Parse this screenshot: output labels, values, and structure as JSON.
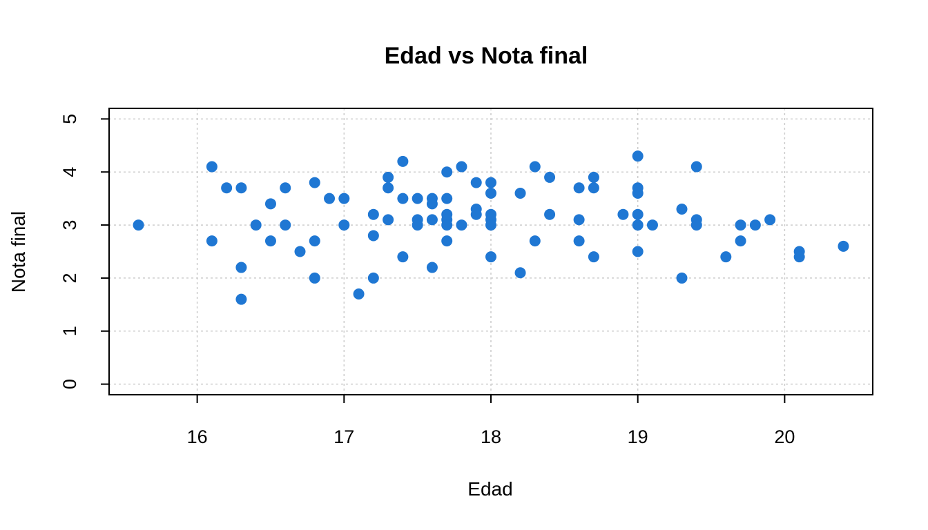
{
  "chart_data": {
    "type": "scatter",
    "title": "Edad vs Nota final",
    "xlabel": "Edad",
    "ylabel": "Nota final",
    "xlim": [
      15.4,
      20.6
    ],
    "ylim": [
      -0.2,
      5.2
    ],
    "x_ticks": [
      16,
      17,
      18,
      19,
      20
    ],
    "y_ticks": [
      0,
      1,
      2,
      3,
      4,
      5
    ],
    "grid": true,
    "point_color": "#1F77D3",
    "grid_color": "#CCCCCC",
    "series": [
      {
        "points": [
          [
            15.6,
            3.0
          ],
          [
            16.1,
            4.1
          ],
          [
            16.1,
            2.7
          ],
          [
            16.2,
            3.7
          ],
          [
            16.3,
            3.7
          ],
          [
            16.3,
            2.2
          ],
          [
            16.3,
            1.6
          ],
          [
            16.4,
            3.0
          ],
          [
            16.5,
            3.4
          ],
          [
            16.5,
            2.7
          ],
          [
            16.6,
            3.7
          ],
          [
            16.6,
            3.0
          ],
          [
            16.7,
            2.5
          ],
          [
            16.8,
            3.8
          ],
          [
            16.8,
            2.7
          ],
          [
            16.8,
            2.0
          ],
          [
            16.9,
            3.5
          ],
          [
            17.0,
            3.5
          ],
          [
            17.0,
            3.0
          ],
          [
            17.1,
            1.7
          ],
          [
            17.2,
            3.2
          ],
          [
            17.2,
            2.8
          ],
          [
            17.2,
            2.0
          ],
          [
            17.3,
            3.9
          ],
          [
            17.3,
            3.7
          ],
          [
            17.3,
            3.1
          ],
          [
            17.4,
            4.2
          ],
          [
            17.4,
            3.5
          ],
          [
            17.4,
            2.4
          ],
          [
            17.5,
            3.5
          ],
          [
            17.5,
            3.1
          ],
          [
            17.5,
            3.0
          ],
          [
            17.6,
            3.5
          ],
          [
            17.6,
            3.4
          ],
          [
            17.6,
            3.1
          ],
          [
            17.6,
            2.2
          ],
          [
            17.7,
            4.0
          ],
          [
            17.7,
            3.5
          ],
          [
            17.7,
            3.2
          ],
          [
            17.7,
            3.1
          ],
          [
            17.7,
            3.0
          ],
          [
            17.7,
            2.7
          ],
          [
            17.8,
            4.1
          ],
          [
            17.8,
            3.0
          ],
          [
            17.9,
            3.8
          ],
          [
            17.9,
            3.3
          ],
          [
            17.9,
            3.2
          ],
          [
            18.0,
            3.8
          ],
          [
            18.0,
            3.6
          ],
          [
            18.0,
            3.2
          ],
          [
            18.0,
            3.1
          ],
          [
            18.0,
            3.0
          ],
          [
            18.0,
            2.4
          ],
          [
            18.2,
            3.6
          ],
          [
            18.2,
            2.1
          ],
          [
            18.3,
            4.1
          ],
          [
            18.3,
            2.7
          ],
          [
            18.4,
            3.9
          ],
          [
            18.4,
            3.2
          ],
          [
            18.6,
            3.7
          ],
          [
            18.6,
            3.1
          ],
          [
            18.6,
            2.7
          ],
          [
            18.7,
            3.9
          ],
          [
            18.7,
            3.7
          ],
          [
            18.7,
            2.4
          ],
          [
            18.9,
            3.2
          ],
          [
            19.0,
            4.3
          ],
          [
            19.0,
            3.7
          ],
          [
            19.0,
            3.6
          ],
          [
            19.0,
            3.2
          ],
          [
            19.0,
            3.0
          ],
          [
            19.0,
            2.5
          ],
          [
            19.1,
            3.0
          ],
          [
            19.3,
            3.3
          ],
          [
            19.3,
            2.0
          ],
          [
            19.4,
            4.1
          ],
          [
            19.4,
            3.1
          ],
          [
            19.4,
            3.0
          ],
          [
            19.6,
            2.4
          ],
          [
            19.7,
            3.0
          ],
          [
            19.7,
            2.7
          ],
          [
            19.8,
            3.0
          ],
          [
            19.9,
            3.1
          ],
          [
            20.1,
            2.5
          ],
          [
            20.1,
            2.4
          ],
          [
            20.4,
            2.6
          ]
        ]
      }
    ]
  }
}
